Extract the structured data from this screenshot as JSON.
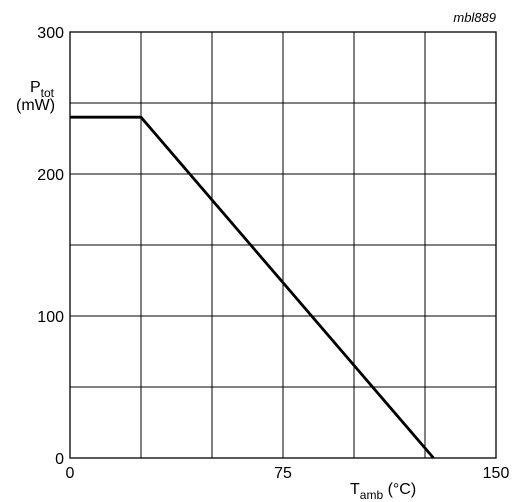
{
  "chart_data": {
    "type": "line",
    "code": "mbl889",
    "xlabel": {
      "main": "T",
      "sub": "amb",
      "unit": " (°C)"
    },
    "ylabel": {
      "main": "P",
      "sub": "tot",
      "unit": "(mW)"
    },
    "xlim": [
      0,
      150
    ],
    "ylim": [
      0,
      300
    ],
    "x_tick_labels": [
      {
        "value": 0,
        "label": "0"
      },
      {
        "value": 75,
        "label": "75"
      },
      {
        "value": 150,
        "label": "150"
      }
    ],
    "y_tick_labels": [
      {
        "value": 0,
        "label": "0"
      },
      {
        "value": 100,
        "label": "100"
      },
      {
        "value": 200,
        "label": "200"
      },
      {
        "value": 300,
        "label": "300"
      }
    ],
    "x_gridlines": [
      0,
      25,
      50,
      75,
      100,
      125,
      150
    ],
    "y_gridlines": [
      0,
      50,
      100,
      150,
      200,
      250,
      300
    ],
    "grid": true,
    "series": [
      {
        "x": [
          0,
          25,
          128
        ],
        "y": [
          240,
          240,
          0
        ]
      }
    ]
  }
}
